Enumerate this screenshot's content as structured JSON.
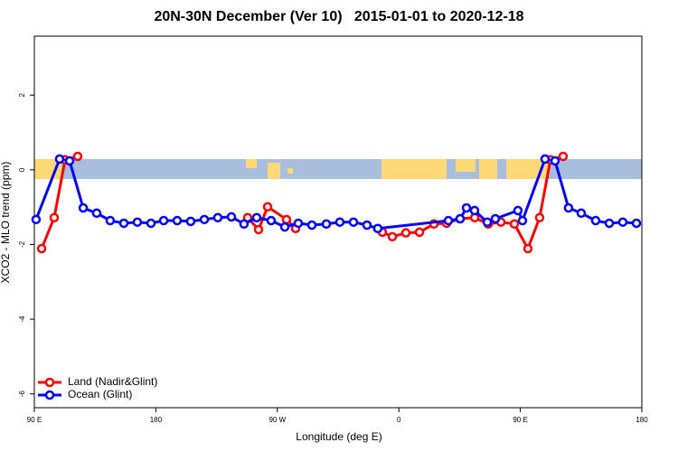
{
  "chart_data": {
    "type": "line",
    "title": "20N-30N December (Ver 10)   2015-01-01 to 2020-12-18",
    "xlabel": "Longitude (deg E)",
    "ylabel": "XCO2 - MLO trend (ppm)",
    "xlim": [
      90,
      540
    ],
    "xticks": [
      {
        "value": 90,
        "label": "90 E"
      },
      {
        "value": 180,
        "label": "180"
      },
      {
        "value": 270,
        "label": "90 W"
      },
      {
        "value": 360,
        "label": "0"
      },
      {
        "value": 450,
        "label": "90 E"
      },
      {
        "value": 540,
        "label": "180"
      }
    ],
    "ylim": [
      -6.37,
      3.58
    ],
    "yticks": [
      2,
      0,
      -2,
      -4,
      -6
    ],
    "legend": "bottom-left",
    "series": [
      {
        "name": "Land (Nadir&Glint)",
        "color": "#ff0000",
        "x": [
          95.4,
          104.7,
          112.8,
          122.1,
          null,
          248.0,
          256.1,
          262.8,
          276.8,
          283.5,
          null,
          347.8,
          355.2,
          365.2,
          375.3,
          386.0,
          395.4,
          405.4,
          416.2,
          426.2,
          435.6,
          445.6,
          455.6,
          464.3,
          472.3,
          481.7
        ],
        "values": [
          -2.11,
          -1.28,
          0.27,
          0.36,
          null,
          -1.28,
          -1.6,
          -0.99,
          -1.33,
          -1.57,
          null,
          -1.67,
          -1.79,
          -1.69,
          -1.67,
          -1.45,
          -1.43,
          -1.31,
          -1.28,
          -1.45,
          -1.4,
          -1.45,
          -2.11,
          -1.28,
          0.27,
          0.36
        ]
      },
      {
        "name": "Ocean (Glint)",
        "color": "#0000ff",
        "x": [
          91.3,
          108.7,
          116.1,
          126.2,
          136.2,
          146.2,
          156.3,
          166.3,
          176.4,
          185.8,
          195.8,
          205.8,
          215.9,
          225.9,
          236.0,
          245.3,
          254.7,
          265.4,
          275.5,
          285.5,
          295.6,
          306.3,
          316.3,
          326.4,
          336.4,
          344.4,
          396.7,
          405.4,
          410.1,
          416.1,
          425.5,
          431.5,
          448.2,
          451.6,
          468.3,
          475.7,
          485.7,
          495.1,
          505.8,
          515.9,
          525.9,
          536.0
        ],
        "values": [
          -1.33,
          0.29,
          0.24,
          -1.02,
          -1.16,
          -1.36,
          -1.43,
          -1.4,
          -1.43,
          -1.36,
          -1.36,
          -1.38,
          -1.33,
          -1.28,
          -1.26,
          -1.45,
          -1.28,
          -1.36,
          -1.53,
          -1.43,
          -1.48,
          -1.45,
          -1.4,
          -1.4,
          -1.48,
          -1.57,
          -1.36,
          -1.31,
          -1.02,
          -1.09,
          -1.4,
          -1.31,
          -1.09,
          -1.36,
          0.29,
          0.24,
          -1.02,
          -1.16,
          -1.36,
          -1.43,
          -1.4,
          -1.43
        ]
      }
    ]
  }
}
